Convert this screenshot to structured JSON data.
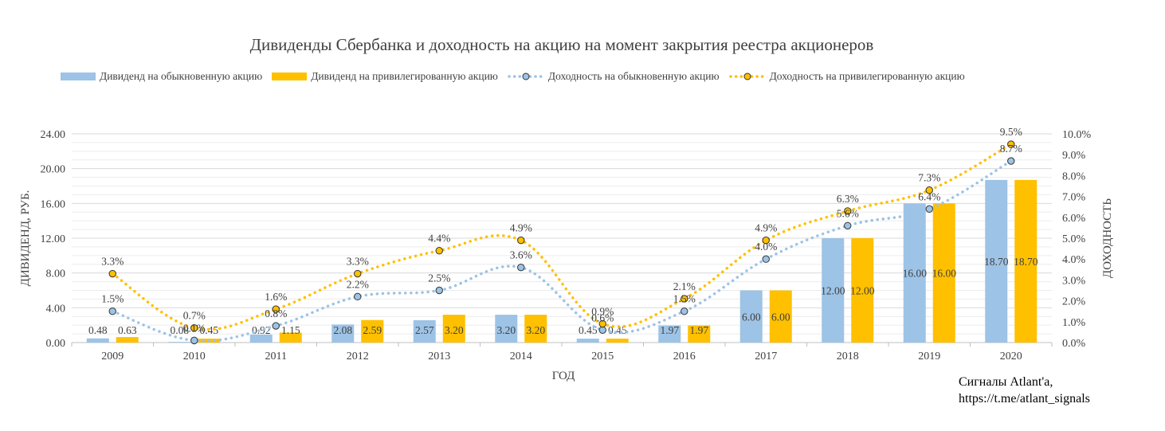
{
  "credit": {
    "line1": "Сигналы Atlant'a,",
    "line2": "https://t.me/atlant_signals"
  },
  "chart_data": {
    "type": "bar",
    "title": "Дивиденды Сбербанка  и доходность на акцию на момент закрытия реестра акционеров",
    "xlabel": "ГОД",
    "ylabel": "ДИВИДЕНД, РУБ.",
    "y2label": "ДОХОДНОСТЬ",
    "legend_position": "top",
    "grid": true,
    "categories": [
      "2009",
      "2010",
      "2011",
      "2012",
      "2013",
      "2014",
      "2015",
      "2016",
      "2017",
      "2018",
      "2019",
      "2020"
    ],
    "ylim": [
      0,
      24
    ],
    "yticks": [
      "0.00",
      "4.00",
      "8.00",
      "12.00",
      "16.00",
      "20.00",
      "24.00"
    ],
    "y2lim": [
      0,
      10
    ],
    "y2ticks": [
      "0.0%",
      "1.0%",
      "2.0%",
      "3.0%",
      "4.0%",
      "5.0%",
      "6.0%",
      "7.0%",
      "8.0%",
      "9.0%",
      "10.0%"
    ],
    "bar_series": [
      {
        "name": "Дивиденд на обыкновенную акцию",
        "color": "#9dc3e6",
        "values": [
          0.48,
          0.08,
          0.92,
          2.08,
          2.57,
          3.2,
          0.45,
          1.97,
          6.0,
          12.0,
          16.0,
          18.7
        ],
        "labels": [
          "0.48",
          "0.08",
          "0.92",
          "2.08",
          "2.57",
          "3.20",
          "0.45",
          "1.97",
          "6.00",
          "12.00",
          "16.00",
          "18.70"
        ]
      },
      {
        "name": "Дивиденд на привилегированную акцию",
        "color": "#ffc000",
        "values": [
          0.63,
          0.45,
          1.15,
          2.59,
          3.2,
          3.2,
          0.45,
          1.97,
          6.0,
          12.0,
          16.0,
          18.7
        ],
        "labels": [
          "0.63",
          "0.45",
          "1.15",
          "2.59",
          "3.20",
          "3.20",
          "0.45",
          "1.97",
          "6.00",
          "12.00",
          "16.00",
          "18.70"
        ]
      }
    ],
    "line_series": [
      {
        "name": "Доходность на обыкновенную акцию",
        "color": "#9dc3e6",
        "marker_color": "#9dc3e6",
        "values": [
          1.5,
          0.1,
          0.8,
          2.2,
          2.5,
          3.6,
          0.6,
          1.5,
          4.0,
          5.6,
          6.4,
          8.7
        ],
        "labels": [
          "1.5%",
          "0.1%",
          "0.8%",
          "2.2%",
          "2.5%",
          "3.6%",
          "0.6%",
          "1.5%",
          "4.0%",
          "5.6%",
          "6.4%",
          "8.7%"
        ]
      },
      {
        "name": "Доходность на привилегированную акцию",
        "color": "#ffc000",
        "marker_color": "#ffc000",
        "values": [
          3.3,
          0.7,
          1.6,
          3.3,
          4.4,
          4.9,
          0.9,
          2.1,
          4.9,
          6.3,
          7.3,
          9.5
        ],
        "labels": [
          "3.3%",
          "0.7%",
          "1.6%",
          "3.3%",
          "4.4%",
          "4.9%",
          "0.9%",
          "2.1%",
          "4.9%",
          "6.3%",
          "7.3%",
          "9.5%"
        ]
      }
    ]
  }
}
